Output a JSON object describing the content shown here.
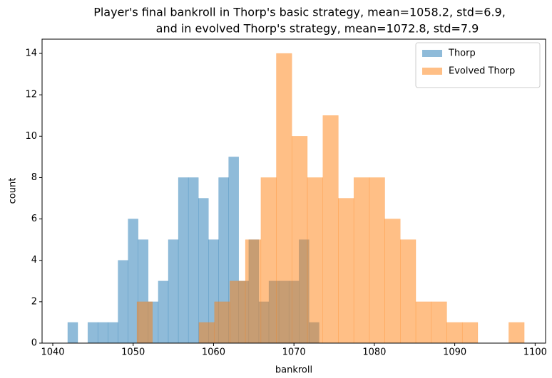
{
  "chart_data": {
    "type": "histogram",
    "title": [
      "Player's final bankroll in Thorp's basic strategy, mean=1058.2, std=6.9,",
      "and in evolved Thorp's strategy, mean=1072.8, std=7.9"
    ],
    "xlabel": "bankroll",
    "ylabel": "count",
    "xlim": [
      1038.67,
      1101.3
    ],
    "ylim": [
      0,
      14.69
    ],
    "xticks": [
      1040,
      1050,
      1060,
      1070,
      1080,
      1090,
      1100
    ],
    "yticks": [
      0,
      2,
      4,
      6,
      8,
      10,
      12,
      14
    ],
    "legend": "upper right",
    "opacity": 0.5,
    "series": [
      {
        "name": "Thorp",
        "color": "#1f77b4",
        "bins": [
          1041.86,
          1043.11,
          1044.36,
          1045.61,
          1046.86,
          1048.12,
          1049.37,
          1050.62,
          1051.87,
          1053.12,
          1054.37,
          1055.62,
          1056.87,
          1058.12,
          1059.37,
          1060.63,
          1061.88,
          1063.13,
          1064.38,
          1065.63,
          1066.88,
          1068.13,
          1069.38,
          1070.63,
          1071.88,
          1073.13
        ],
        "values": [
          1,
          0,
          1,
          1,
          1,
          4,
          6,
          5,
          2,
          3,
          5,
          8,
          8,
          7,
          5,
          8,
          9,
          3,
          5,
          2,
          3,
          3,
          3,
          5,
          1
        ]
      },
      {
        "name": "Evolved Thorp",
        "color": "#ff7f0e",
        "bins": [
          1050.47,
          1052.4,
          1054.32,
          1056.25,
          1058.18,
          1060.11,
          1062.03,
          1063.96,
          1065.89,
          1067.81,
          1069.74,
          1071.67,
          1073.6,
          1075.52,
          1077.45,
          1079.38,
          1081.3,
          1083.23,
          1085.16,
          1087.09,
          1089.01,
          1090.94,
          1092.87,
          1094.79,
          1096.72,
          1098.65
        ],
        "values": [
          2,
          0,
          0,
          0,
          1,
          2,
          3,
          5,
          8,
          14,
          10,
          8,
          11,
          7,
          8,
          8,
          6,
          5,
          2,
          2,
          1,
          1,
          0,
          0,
          1
        ]
      }
    ]
  }
}
